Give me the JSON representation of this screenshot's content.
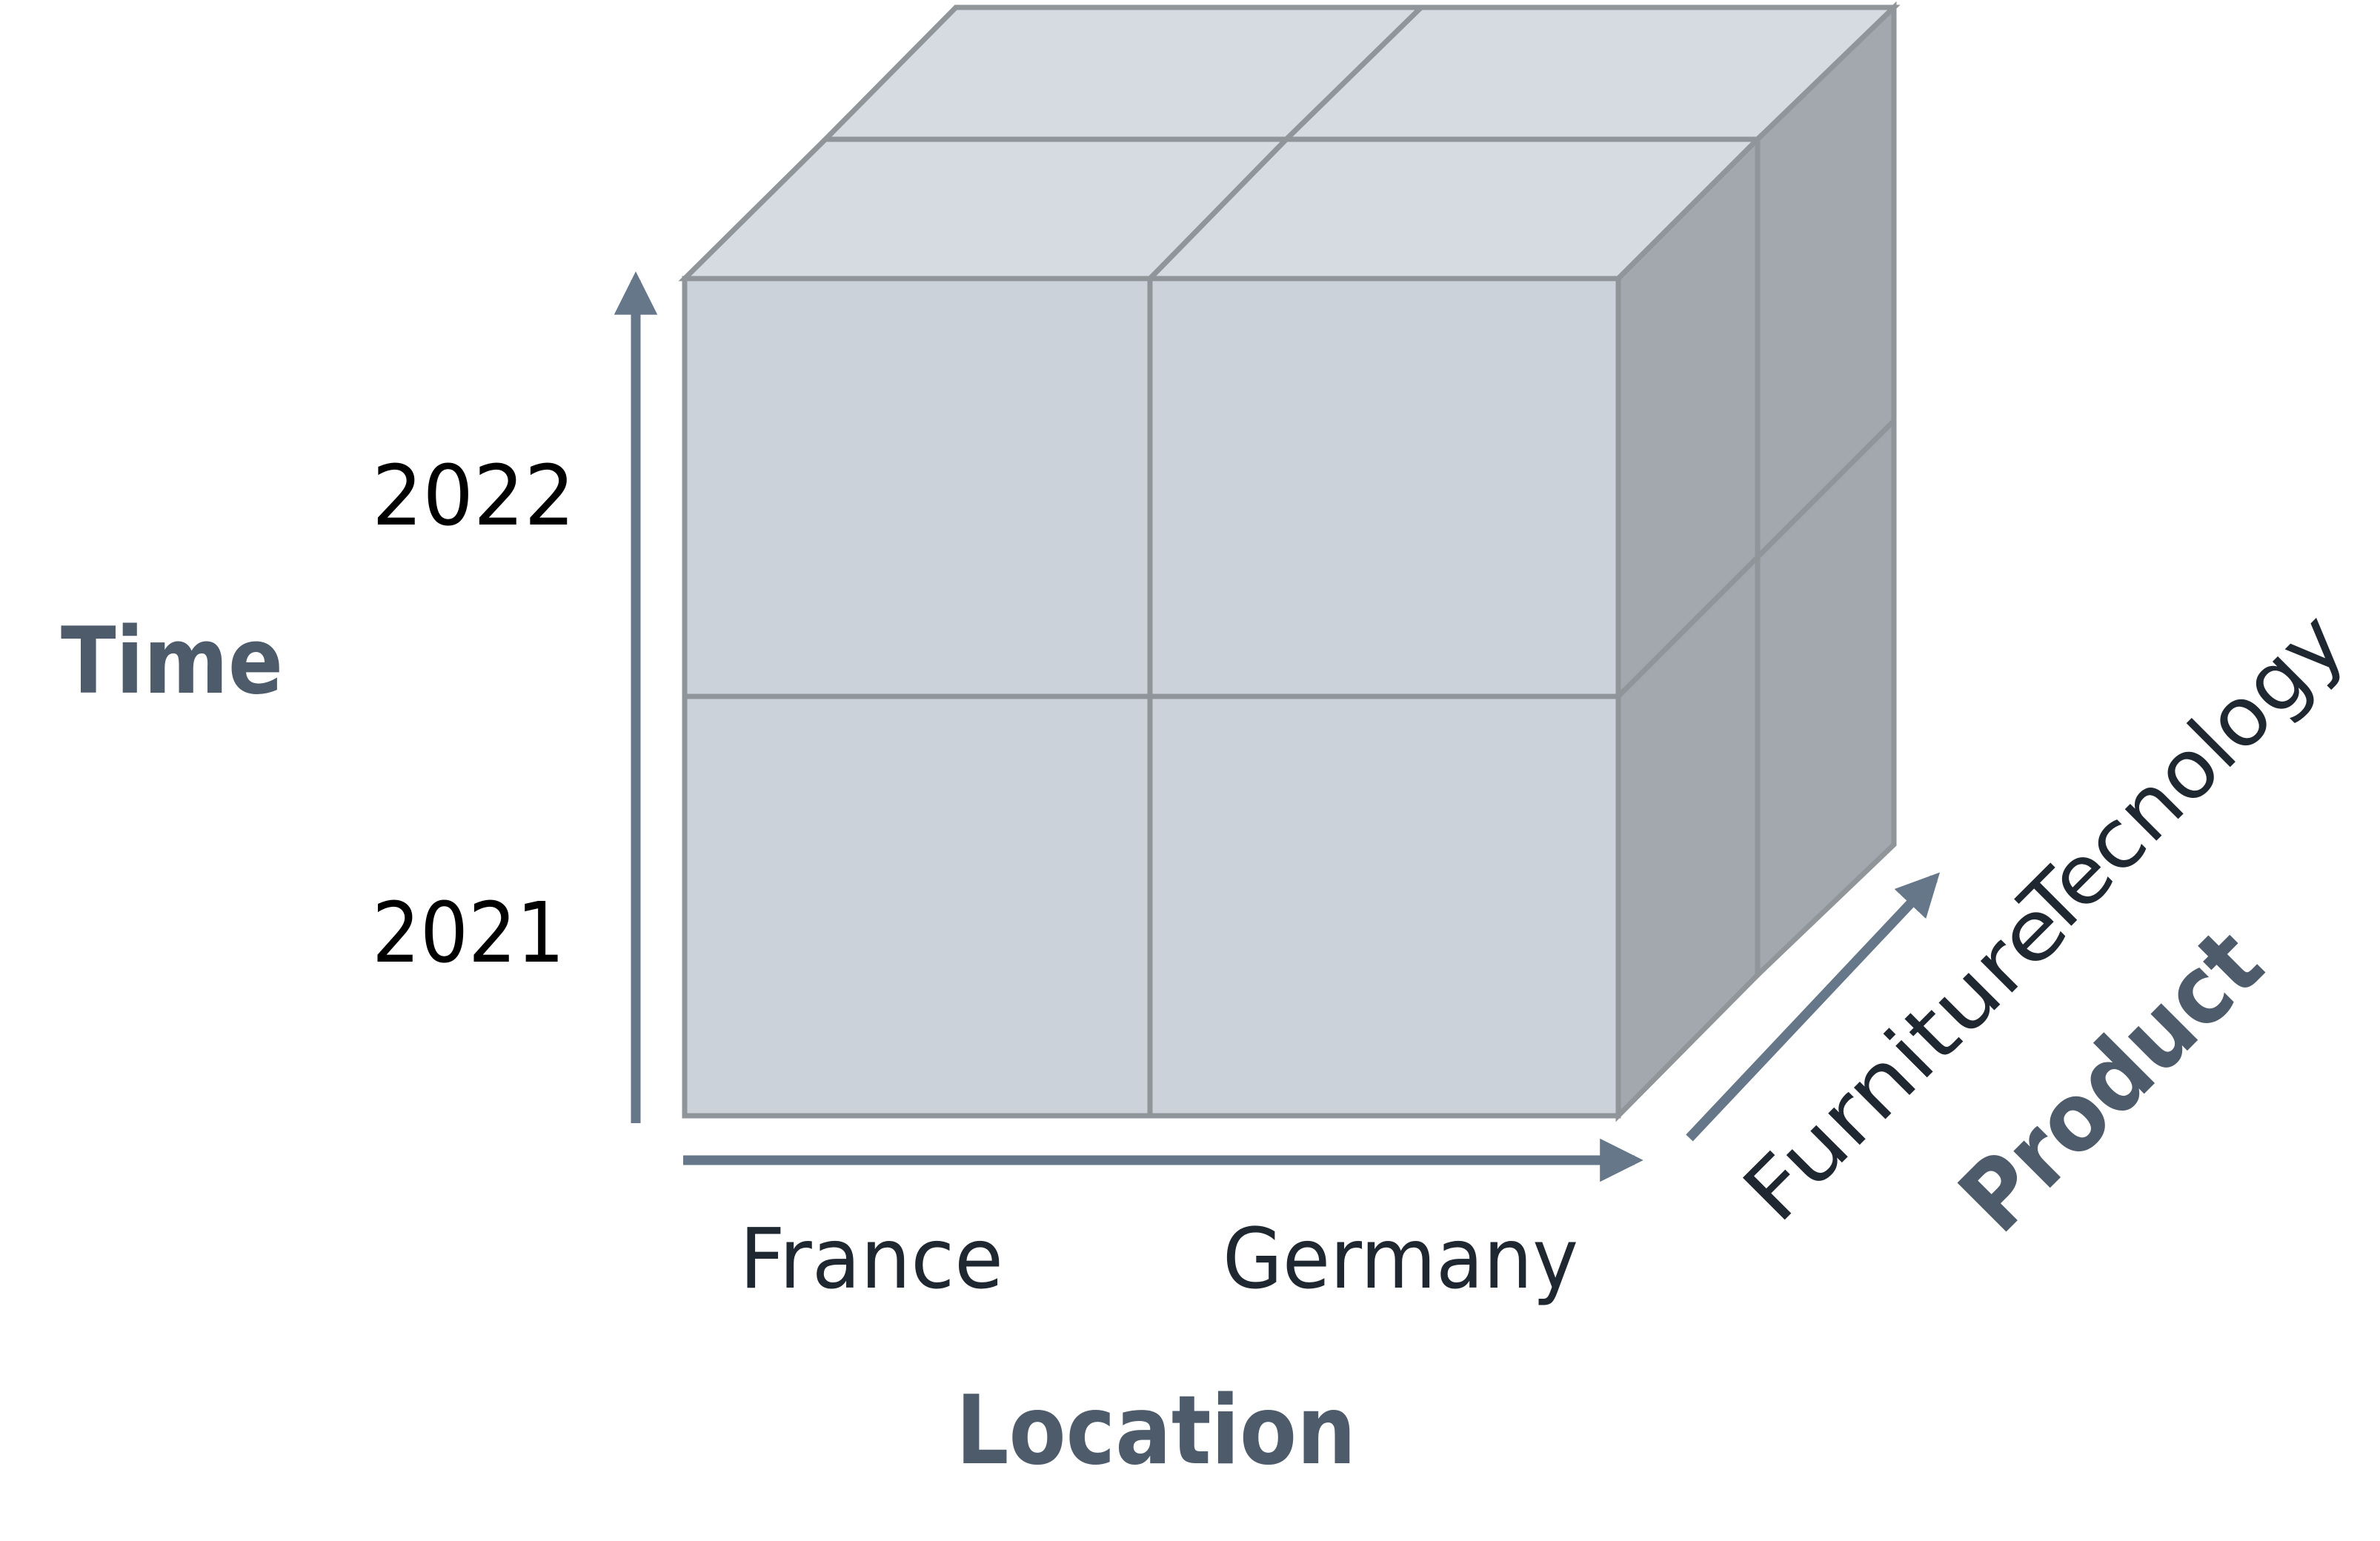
{
  "axes": {
    "time": {
      "title": "Time",
      "values": [
        "2022",
        "2021"
      ]
    },
    "location": {
      "title": "Location",
      "values": [
        "France",
        "Germany"
      ]
    },
    "product": {
      "title": "Product",
      "values": [
        "Furniture",
        "Tecnology"
      ]
    }
  },
  "colors": {
    "front_face": "#ccd2d9",
    "top_face": "#d6dbe1",
    "side_face": "#a3a8ae",
    "edge": "#8f9599",
    "arrow": "#66778a",
    "axis_title": "#4d5b6b"
  }
}
